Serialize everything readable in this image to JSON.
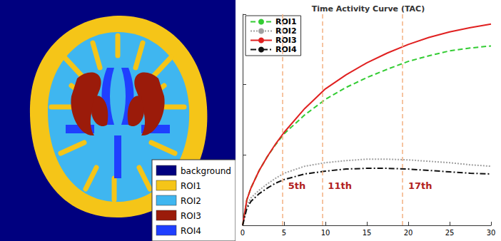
{
  "chart_data": {
    "type": "line",
    "title": "Time Activity Curve (TAC)",
    "x": [
      0,
      0.5,
      1,
      2,
      3,
      4,
      5,
      7.5,
      10,
      12.5,
      15,
      17.5,
      20,
      22.5,
      25,
      27.5,
      30
    ],
    "series": [
      {
        "name": "ROI1",
        "color": "#33cc33",
        "line_style": "dashed",
        "values": [
          0,
          0.36,
          0.53,
          0.78,
          0.98,
          1.15,
          1.3,
          1.57,
          1.79,
          1.96,
          2.1,
          2.22,
          2.33,
          2.41,
          2.48,
          2.52,
          2.55
        ]
      },
      {
        "name": "ROI2",
        "color": "#a0a0a0",
        "line_style": "dotted",
        "values": [
          0,
          0.28,
          0.39,
          0.5,
          0.59,
          0.67,
          0.74,
          0.84,
          0.89,
          0.92,
          0.94,
          0.94,
          0.93,
          0.91,
          0.89,
          0.86,
          0.84
        ]
      },
      {
        "name": "ROI3",
        "color": "#e02020",
        "line_style": "solid",
        "values": [
          0,
          0.36,
          0.53,
          0.78,
          0.98,
          1.16,
          1.32,
          1.66,
          1.94,
          2.14,
          2.31,
          2.45,
          2.57,
          2.67,
          2.75,
          2.81,
          2.86
        ]
      },
      {
        "name": "ROI4",
        "color": "#111111",
        "line_style": "dashdot",
        "values": [
          0,
          0.24,
          0.34,
          0.45,
          0.53,
          0.6,
          0.65,
          0.73,
          0.77,
          0.8,
          0.81,
          0.81,
          0.8,
          0.78,
          0.76,
          0.74,
          0.73
        ]
      }
    ],
    "xlim": [
      0,
      30
    ],
    "xticks": [
      0,
      5,
      10,
      15,
      20,
      25,
      30
    ],
    "ylim": [
      0,
      3
    ],
    "yticks": [
      0,
      1,
      2,
      3
    ],
    "tick_labels": "x",
    "grid": false,
    "legend": "upper left",
    "annotations": [
      {
        "x": 4.8,
        "label": "5th"
      },
      {
        "x": 9.6,
        "label": "11th"
      },
      {
        "x": 19.3,
        "label": "17th"
      }
    ]
  },
  "segmentation_image": {
    "legend": [
      {
        "label": "background",
        "color": "#00007f"
      },
      {
        "label": "ROI1",
        "color": "#f5c518"
      },
      {
        "label": "ROI2",
        "color": "#3fb6f0"
      },
      {
        "label": "ROI3",
        "color": "#9b1b0a"
      },
      {
        "label": "ROI4",
        "color": "#1f3fff"
      }
    ]
  }
}
